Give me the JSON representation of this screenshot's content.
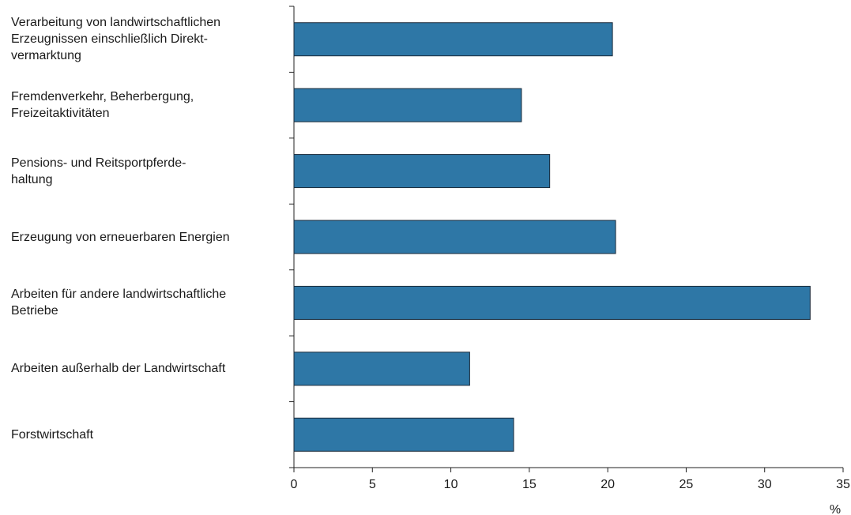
{
  "chart_data": {
    "type": "bar",
    "orientation": "horizontal",
    "categories": [
      "Verarbeitung von landwirtschaftlichen\nErzeugnissen einschließlich Direkt-\nvermarktung",
      "Fremdenverkehr, Beherbergung,\nFreizeitaktivitäten",
      "Pensions- und Reitsportpferde-\nhaltung",
      "Erzeugung von erneuerbaren Energien",
      "Arbeiten für andere landwirtschaftliche\nBetriebe",
      "Arbeiten außerhalb der Landwirtschaft",
      "Forstwirtschaft"
    ],
    "values": [
      20.3,
      14.5,
      16.3,
      20.5,
      32.9,
      11.2,
      14.0
    ],
    "title": "",
    "xlabel": "%",
    "ylabel": "",
    "xlim": [
      0,
      35
    ],
    "xticks": [
      0,
      5,
      10,
      15,
      20,
      25,
      30,
      35
    ],
    "xtick_labels": [
      "0",
      "5",
      "10",
      "15",
      "20",
      "25",
      "30",
      "35"
    ],
    "bar_color": "#2e77a6",
    "bar_edge_color": "#1a2a3a",
    "grid": false,
    "legend": "none"
  }
}
